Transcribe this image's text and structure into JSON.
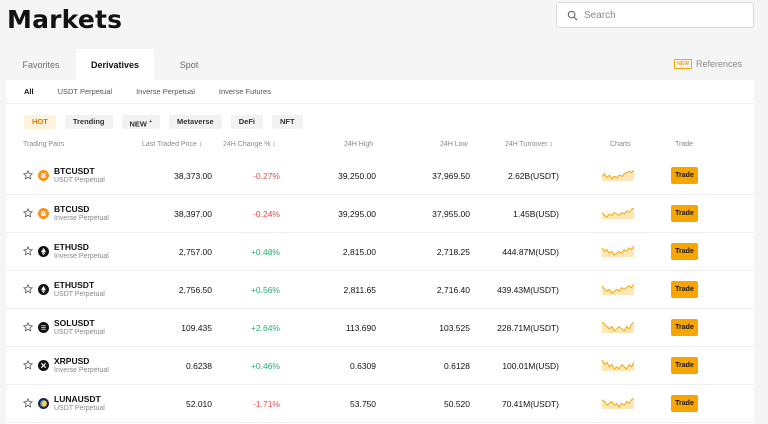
{
  "page": {
    "title": "Markets"
  },
  "search": {
    "placeholder": "Search"
  },
  "tabs": [
    {
      "label": "Favorites",
      "active": false
    },
    {
      "label": "Derivatives",
      "active": true
    },
    {
      "label": "Spot",
      "active": false
    }
  ],
  "references": {
    "badge": "NEW",
    "label": "References"
  },
  "subtabs": [
    {
      "label": "All",
      "active": true
    },
    {
      "label": "USDT Perpetual",
      "active": false
    },
    {
      "label": "Inverse Perpetual",
      "active": false
    },
    {
      "label": "Inverse Futures",
      "active": false
    }
  ],
  "chips": [
    {
      "label": "HOT",
      "active": true
    },
    {
      "label": "Trending",
      "active": false
    },
    {
      "label": "NEW",
      "sup": "+",
      "active": false
    },
    {
      "label": "Metaverse",
      "active": false
    },
    {
      "label": "DeFi",
      "active": false
    },
    {
      "label": "NFT",
      "active": false
    }
  ],
  "columns": {
    "pair": "Trading Pairs",
    "last": "Last Traded Price ↕",
    "change": "24H Change % ↕",
    "high": "24H High",
    "low": "24H Low",
    "turnover": "24H Turnover ↕",
    "charts": "Charts",
    "trade": "Trade"
  },
  "trade_label": "Trade",
  "colors": {
    "accent": "#f7a600",
    "positive": "#20b26c",
    "negative": "#ef454a"
  },
  "rows": [
    {
      "symbol": "BTCUSDT",
      "type": "USDT Perpetual",
      "icon": "bitcoin-icon",
      "icon_color": "#f7931a",
      "last": "38,373.00",
      "change": "-0.27%",
      "dir": "neg",
      "high": "39,250.00",
      "low": "37,969.50",
      "turnover": "2.62B(USDT)",
      "spark": [
        4,
        6,
        3,
        5,
        2,
        4,
        3,
        5,
        4,
        6,
        7,
        8,
        7,
        9
      ]
    },
    {
      "symbol": "BTCUSD",
      "type": "Inverse Perpetual",
      "icon": "bitcoin-icon",
      "icon_color": "#f7931a",
      "last": "38,397.00",
      "change": "-0.24%",
      "dir": "neg",
      "high": "39,295.00",
      "low": "37,955.00",
      "turnover": "1.45B(USD)",
      "spark": [
        5,
        3,
        2,
        4,
        3,
        5,
        4,
        3,
        5,
        4,
        6,
        5,
        7,
        8
      ]
    },
    {
      "symbol": "ETHUSD",
      "type": "Inverse Perpetual",
      "icon": "ethereum-icon",
      "icon_color": "#121214",
      "last": "2,757.00",
      "change": "+0.48%",
      "dir": "pos",
      "high": "2,815.00",
      "low": "2,718.25",
      "turnover": "444.87M(USD)",
      "spark": [
        6,
        4,
        5,
        3,
        4,
        2,
        3,
        4,
        3,
        5,
        4,
        6,
        5,
        7
      ]
    },
    {
      "symbol": "ETHUSDT",
      "type": "USDT Perpetual",
      "icon": "ethereum-icon",
      "icon_color": "#121214",
      "last": "2,756.50",
      "change": "+0.56%",
      "dir": "pos",
      "high": "2,811.65",
      "low": "2,716.40",
      "turnover": "439.43M(USDT)",
      "spark": [
        6,
        4,
        3,
        4,
        2,
        3,
        4,
        3,
        5,
        4,
        5,
        6,
        5,
        7
      ]
    },
    {
      "symbol": "SOLUSDT",
      "type": "USDT Perpetual",
      "icon": "solana-icon",
      "icon_color": "#121214",
      "last": "109.435",
      "change": "+2.64%",
      "dir": "pos",
      "high": "113.690",
      "low": "103.525",
      "turnover": "228.71M(USDT)",
      "spark": [
        7,
        6,
        5,
        4,
        5,
        3,
        4,
        5,
        4,
        3,
        5,
        4,
        6,
        7
      ]
    },
    {
      "symbol": "XRPUSD",
      "type": "Inverse Perpetual",
      "icon": "xrp-icon",
      "icon_color": "#121214",
      "last": "0.6238",
      "change": "+0.46%",
      "dir": "pos",
      "high": "0.6309",
      "low": "0.6128",
      "turnover": "100.01M(USD)",
      "spark": [
        7,
        5,
        6,
        4,
        5,
        3,
        4,
        3,
        5,
        4,
        3,
        5,
        4,
        6
      ]
    },
    {
      "symbol": "LUNAUSDT",
      "type": "USDT Perpetual",
      "icon": "terra-luna-icon",
      "icon_color": "#172852",
      "last": "52.010",
      "change": "-1.71%",
      "dir": "neg",
      "high": "53.750",
      "low": "50.520",
      "turnover": "70.41M(USDT)",
      "spark": [
        6,
        5,
        3,
        4,
        5,
        3,
        4,
        2,
        4,
        3,
        5,
        4,
        6,
        7
      ]
    }
  ]
}
